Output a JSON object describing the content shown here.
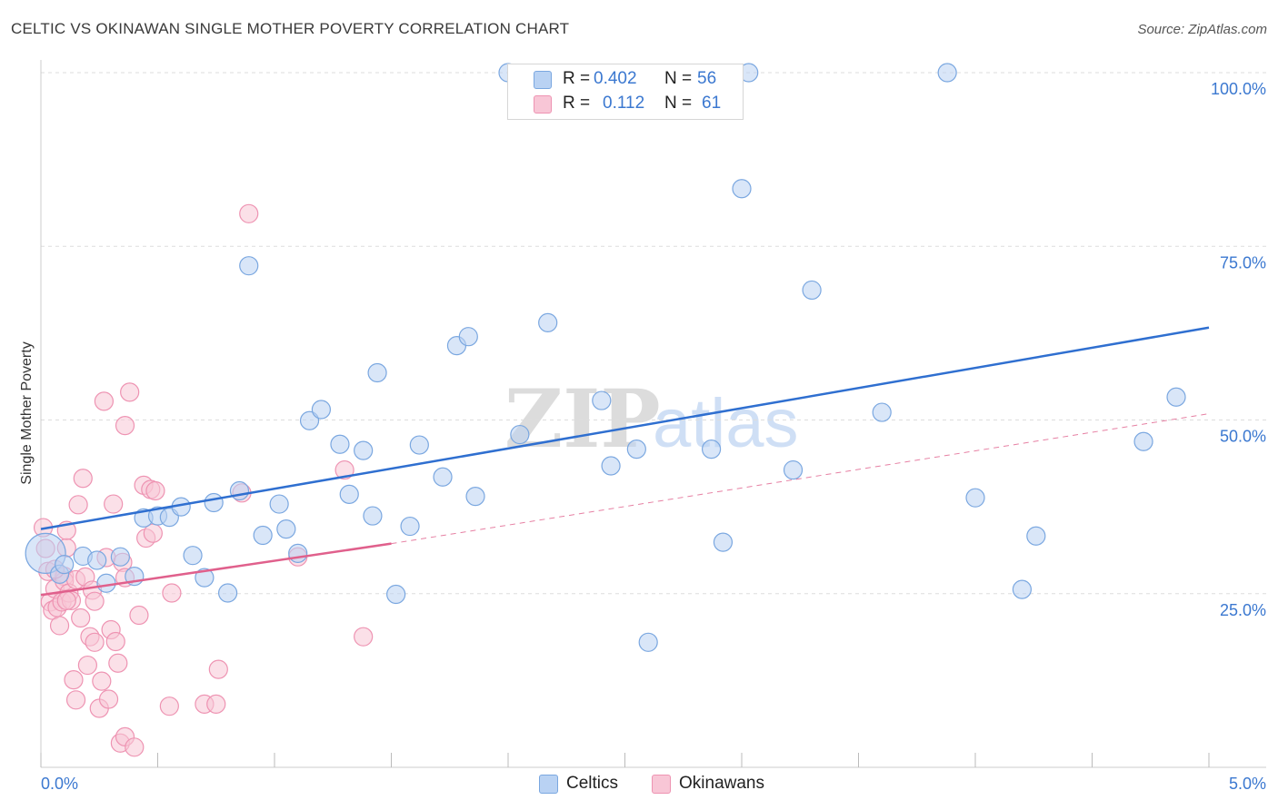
{
  "header": {
    "title": "CELTIC VS OKINAWAN SINGLE MOTHER POVERTY CORRELATION CHART",
    "source": "Source: ZipAtlas.com"
  },
  "watermark": {
    "zip": "ZIP",
    "atlas": "atlas"
  },
  "legend_top": {
    "rows": [
      {
        "r_label": "R =",
        "r_value": "0.402",
        "n_label": "N =",
        "n_value": "56"
      },
      {
        "r_label": "R =",
        "r_value": "0.112",
        "n_label": "N =",
        "n_value": "61"
      }
    ]
  },
  "legend_bottom": {
    "items": [
      "Celtics",
      "Okinawans"
    ]
  },
  "colors": {
    "celtic_fill": "#b9d2f3",
    "celtic_stroke": "#7aa7e0",
    "celtic_line": "#2f6fd0",
    "okinawan_fill": "#f8c6d6",
    "okinawan_stroke": "#ee93b2",
    "okinawan_line": "#e0608c",
    "tick_text": "#3b78d0",
    "grid": "#dddddd"
  },
  "chart_data": {
    "type": "scatter",
    "title": "CELTIC VS OKINAWAN SINGLE MOTHER POVERTY CORRELATION CHART",
    "xlabel": "",
    "ylabel": "Single Mother Poverty",
    "xlim": [
      0,
      5
    ],
    "ylim": [
      0,
      100
    ],
    "x_tick_labels": [
      "0.0%",
      "5.0%"
    ],
    "y_ticks": [
      25,
      50,
      75,
      100
    ],
    "y_tick_labels": [
      "25.0%",
      "50.0%",
      "75.0%",
      "100.0%"
    ],
    "grid": "horizontal dashed",
    "legend_placement": "bottom",
    "series": [
      {
        "name": "Celtics",
        "r": 0.402,
        "n": 56,
        "trend": {
          "x": [
            0,
            5
          ],
          "y": [
            34.3,
            63.3
          ],
          "style": "solid"
        },
        "points": [
          [
            0.02,
            30.8,
            22
          ],
          [
            0.08,
            27.8,
            10
          ],
          [
            0.1,
            29.2,
            10
          ],
          [
            0.18,
            30.4,
            10
          ],
          [
            0.24,
            29.8,
            10
          ],
          [
            0.28,
            26.5,
            10
          ],
          [
            0.34,
            30.3,
            10
          ],
          [
            0.4,
            27.5,
            10
          ],
          [
            0.44,
            35.9,
            10
          ],
          [
            0.5,
            36.2,
            10
          ],
          [
            0.55,
            36.0,
            10
          ],
          [
            0.6,
            37.5,
            10
          ],
          [
            0.65,
            30.5,
            10
          ],
          [
            0.7,
            27.3,
            10
          ],
          [
            0.74,
            38.1,
            10
          ],
          [
            0.8,
            25.1,
            10
          ],
          [
            0.85,
            39.8,
            10
          ],
          [
            0.89,
            72.2,
            10
          ],
          [
            0.95,
            33.4,
            10
          ],
          [
            1.02,
            37.9,
            10
          ],
          [
            1.05,
            34.3,
            10
          ],
          [
            1.1,
            30.8,
            10
          ],
          [
            1.15,
            49.9,
            10
          ],
          [
            1.2,
            51.5,
            10
          ],
          [
            1.28,
            46.5,
            10
          ],
          [
            1.32,
            39.3,
            10
          ],
          [
            1.38,
            45.6,
            10
          ],
          [
            1.42,
            36.2,
            10
          ],
          [
            1.44,
            56.8,
            10
          ],
          [
            1.52,
            24.9,
            10
          ],
          [
            1.58,
            34.7,
            10
          ],
          [
            1.62,
            46.4,
            10
          ],
          [
            1.72,
            41.8,
            10
          ],
          [
            1.78,
            60.7,
            10
          ],
          [
            1.83,
            62.0,
            10
          ],
          [
            1.86,
            39.0,
            10
          ],
          [
            2.0,
            100.0,
            10
          ],
          [
            2.05,
            47.9,
            10
          ],
          [
            2.17,
            64.0,
            10
          ],
          [
            2.4,
            52.8,
            10
          ],
          [
            2.44,
            43.4,
            10
          ],
          [
            2.55,
            45.8,
            10
          ],
          [
            2.6,
            18.0,
            10
          ],
          [
            2.87,
            45.8,
            10
          ],
          [
            2.92,
            32.4,
            10
          ],
          [
            3.0,
            83.3,
            10
          ],
          [
            3.03,
            100.0,
            10
          ],
          [
            3.22,
            42.8,
            10
          ],
          [
            3.3,
            68.7,
            10
          ],
          [
            3.6,
            51.1,
            10
          ],
          [
            3.88,
            100.0,
            10
          ],
          [
            4.0,
            38.8,
            10
          ],
          [
            4.2,
            25.6,
            10
          ],
          [
            4.26,
            33.3,
            10
          ],
          [
            4.72,
            46.9,
            10
          ],
          [
            4.86,
            53.3,
            10
          ]
        ]
      },
      {
        "name": "Okinawans",
        "r": 0.112,
        "n": 61,
        "trend": {
          "x": [
            0,
            1.5,
            5
          ],
          "y": [
            24.8,
            32.2,
            50.9
          ],
          "style": "solid then dashed"
        },
        "points": [
          [
            0.01,
            34.5,
            10
          ],
          [
            0.02,
            31.5,
            10
          ],
          [
            0.03,
            28.2,
            10
          ],
          [
            0.04,
            23.8,
            10
          ],
          [
            0.05,
            22.6,
            10
          ],
          [
            0.06,
            25.7,
            10
          ],
          [
            0.07,
            23.0,
            10
          ],
          [
            0.08,
            20.4,
            10
          ],
          [
            0.09,
            23.8,
            10
          ],
          [
            0.1,
            27.5,
            10
          ],
          [
            0.1,
            26.8,
            10
          ],
          [
            0.11,
            31.6,
            10
          ],
          [
            0.11,
            34.1,
            10
          ],
          [
            0.12,
            25.1,
            10
          ],
          [
            0.13,
            24.0,
            10
          ],
          [
            0.14,
            12.6,
            10
          ],
          [
            0.15,
            27.0,
            10
          ],
          [
            0.15,
            9.7,
            10
          ],
          [
            0.16,
            37.8,
            10
          ],
          [
            0.17,
            21.5,
            10
          ],
          [
            0.18,
            41.6,
            10
          ],
          [
            0.19,
            27.4,
            10
          ],
          [
            0.2,
            14.7,
            10
          ],
          [
            0.21,
            18.8,
            10
          ],
          [
            0.22,
            25.5,
            10
          ],
          [
            0.23,
            23.9,
            10
          ],
          [
            0.23,
            18.0,
            10
          ],
          [
            0.25,
            8.5,
            10
          ],
          [
            0.26,
            12.4,
            10
          ],
          [
            0.27,
            52.7,
            10
          ],
          [
            0.28,
            30.2,
            10
          ],
          [
            0.29,
            9.8,
            10
          ],
          [
            0.3,
            19.8,
            10
          ],
          [
            0.31,
            37.9,
            10
          ],
          [
            0.32,
            18.1,
            10
          ],
          [
            0.33,
            15.0,
            10
          ],
          [
            0.34,
            3.5,
            10
          ],
          [
            0.35,
            29.5,
            10
          ],
          [
            0.36,
            27.3,
            10
          ],
          [
            0.36,
            49.2,
            10
          ],
          [
            0.36,
            4.4,
            10
          ],
          [
            0.38,
            54.0,
            10
          ],
          [
            0.4,
            2.9,
            10
          ],
          [
            0.42,
            21.9,
            10
          ],
          [
            0.44,
            40.6,
            10
          ],
          [
            0.45,
            33.0,
            10
          ],
          [
            0.47,
            40.0,
            10
          ],
          [
            0.48,
            33.7,
            10
          ],
          [
            0.49,
            39.8,
            10
          ],
          [
            0.55,
            8.8,
            10
          ],
          [
            0.56,
            25.1,
            10
          ],
          [
            0.7,
            9.1,
            10
          ],
          [
            0.75,
            9.1,
            10
          ],
          [
            0.76,
            14.1,
            10
          ],
          [
            0.86,
            39.5,
            10
          ],
          [
            0.89,
            79.7,
            10
          ],
          [
            1.1,
            30.3,
            10
          ],
          [
            1.3,
            42.8,
            10
          ],
          [
            1.38,
            18.8,
            10
          ],
          [
            0.06,
            28.5,
            10
          ],
          [
            0.11,
            24.0,
            10
          ]
        ]
      }
    ]
  }
}
